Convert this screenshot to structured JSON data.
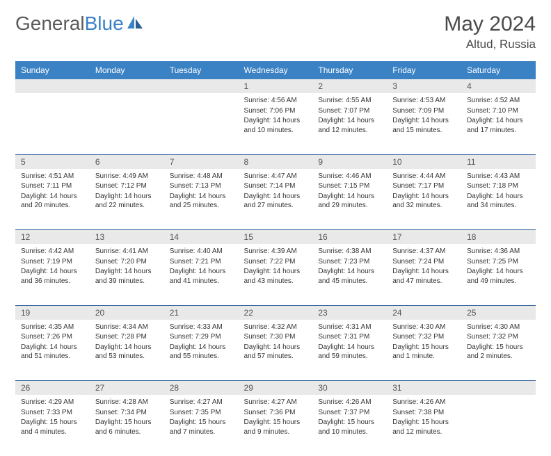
{
  "brand": {
    "part1": "General",
    "part2": "Blue"
  },
  "title": "May 2024",
  "location": "Altud, Russia",
  "colors": {
    "header_bg": "#3b82c4",
    "header_text": "#ffffff",
    "daynum_bg": "#e9e9e9",
    "border": "#3b6aa0",
    "text": "#333333"
  },
  "day_headers": [
    "Sunday",
    "Monday",
    "Tuesday",
    "Wednesday",
    "Thursday",
    "Friday",
    "Saturday"
  ],
  "weeks": [
    [
      null,
      null,
      null,
      {
        "n": "1",
        "sr": "Sunrise: 4:56 AM",
        "ss": "Sunset: 7:06 PM",
        "dl": "Daylight: 14 hours and 10 minutes."
      },
      {
        "n": "2",
        "sr": "Sunrise: 4:55 AM",
        "ss": "Sunset: 7:07 PM",
        "dl": "Daylight: 14 hours and 12 minutes."
      },
      {
        "n": "3",
        "sr": "Sunrise: 4:53 AM",
        "ss": "Sunset: 7:09 PM",
        "dl": "Daylight: 14 hours and 15 minutes."
      },
      {
        "n": "4",
        "sr": "Sunrise: 4:52 AM",
        "ss": "Sunset: 7:10 PM",
        "dl": "Daylight: 14 hours and 17 minutes."
      }
    ],
    [
      {
        "n": "5",
        "sr": "Sunrise: 4:51 AM",
        "ss": "Sunset: 7:11 PM",
        "dl": "Daylight: 14 hours and 20 minutes."
      },
      {
        "n": "6",
        "sr": "Sunrise: 4:49 AM",
        "ss": "Sunset: 7:12 PM",
        "dl": "Daylight: 14 hours and 22 minutes."
      },
      {
        "n": "7",
        "sr": "Sunrise: 4:48 AM",
        "ss": "Sunset: 7:13 PM",
        "dl": "Daylight: 14 hours and 25 minutes."
      },
      {
        "n": "8",
        "sr": "Sunrise: 4:47 AM",
        "ss": "Sunset: 7:14 PM",
        "dl": "Daylight: 14 hours and 27 minutes."
      },
      {
        "n": "9",
        "sr": "Sunrise: 4:46 AM",
        "ss": "Sunset: 7:15 PM",
        "dl": "Daylight: 14 hours and 29 minutes."
      },
      {
        "n": "10",
        "sr": "Sunrise: 4:44 AM",
        "ss": "Sunset: 7:17 PM",
        "dl": "Daylight: 14 hours and 32 minutes."
      },
      {
        "n": "11",
        "sr": "Sunrise: 4:43 AM",
        "ss": "Sunset: 7:18 PM",
        "dl": "Daylight: 14 hours and 34 minutes."
      }
    ],
    [
      {
        "n": "12",
        "sr": "Sunrise: 4:42 AM",
        "ss": "Sunset: 7:19 PM",
        "dl": "Daylight: 14 hours and 36 minutes."
      },
      {
        "n": "13",
        "sr": "Sunrise: 4:41 AM",
        "ss": "Sunset: 7:20 PM",
        "dl": "Daylight: 14 hours and 39 minutes."
      },
      {
        "n": "14",
        "sr": "Sunrise: 4:40 AM",
        "ss": "Sunset: 7:21 PM",
        "dl": "Daylight: 14 hours and 41 minutes."
      },
      {
        "n": "15",
        "sr": "Sunrise: 4:39 AM",
        "ss": "Sunset: 7:22 PM",
        "dl": "Daylight: 14 hours and 43 minutes."
      },
      {
        "n": "16",
        "sr": "Sunrise: 4:38 AM",
        "ss": "Sunset: 7:23 PM",
        "dl": "Daylight: 14 hours and 45 minutes."
      },
      {
        "n": "17",
        "sr": "Sunrise: 4:37 AM",
        "ss": "Sunset: 7:24 PM",
        "dl": "Daylight: 14 hours and 47 minutes."
      },
      {
        "n": "18",
        "sr": "Sunrise: 4:36 AM",
        "ss": "Sunset: 7:25 PM",
        "dl": "Daylight: 14 hours and 49 minutes."
      }
    ],
    [
      {
        "n": "19",
        "sr": "Sunrise: 4:35 AM",
        "ss": "Sunset: 7:26 PM",
        "dl": "Daylight: 14 hours and 51 minutes."
      },
      {
        "n": "20",
        "sr": "Sunrise: 4:34 AM",
        "ss": "Sunset: 7:28 PM",
        "dl": "Daylight: 14 hours and 53 minutes."
      },
      {
        "n": "21",
        "sr": "Sunrise: 4:33 AM",
        "ss": "Sunset: 7:29 PM",
        "dl": "Daylight: 14 hours and 55 minutes."
      },
      {
        "n": "22",
        "sr": "Sunrise: 4:32 AM",
        "ss": "Sunset: 7:30 PM",
        "dl": "Daylight: 14 hours and 57 minutes."
      },
      {
        "n": "23",
        "sr": "Sunrise: 4:31 AM",
        "ss": "Sunset: 7:31 PM",
        "dl": "Daylight: 14 hours and 59 minutes."
      },
      {
        "n": "24",
        "sr": "Sunrise: 4:30 AM",
        "ss": "Sunset: 7:32 PM",
        "dl": "Daylight: 15 hours and 1 minute."
      },
      {
        "n": "25",
        "sr": "Sunrise: 4:30 AM",
        "ss": "Sunset: 7:32 PM",
        "dl": "Daylight: 15 hours and 2 minutes."
      }
    ],
    [
      {
        "n": "26",
        "sr": "Sunrise: 4:29 AM",
        "ss": "Sunset: 7:33 PM",
        "dl": "Daylight: 15 hours and 4 minutes."
      },
      {
        "n": "27",
        "sr": "Sunrise: 4:28 AM",
        "ss": "Sunset: 7:34 PM",
        "dl": "Daylight: 15 hours and 6 minutes."
      },
      {
        "n": "28",
        "sr": "Sunrise: 4:27 AM",
        "ss": "Sunset: 7:35 PM",
        "dl": "Daylight: 15 hours and 7 minutes."
      },
      {
        "n": "29",
        "sr": "Sunrise: 4:27 AM",
        "ss": "Sunset: 7:36 PM",
        "dl": "Daylight: 15 hours and 9 minutes."
      },
      {
        "n": "30",
        "sr": "Sunrise: 4:26 AM",
        "ss": "Sunset: 7:37 PM",
        "dl": "Daylight: 15 hours and 10 minutes."
      },
      {
        "n": "31",
        "sr": "Sunrise: 4:26 AM",
        "ss": "Sunset: 7:38 PM",
        "dl": "Daylight: 15 hours and 12 minutes."
      },
      null
    ]
  ]
}
